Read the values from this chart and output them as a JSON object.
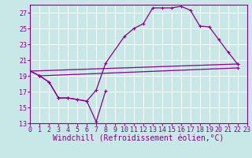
{
  "bg_color": "#c8e8e8",
  "line_color": "#880088",
  "grid_color": "#aacccc",
  "xlim": [
    0,
    23
  ],
  "ylim": [
    13,
    28
  ],
  "yticks": [
    13,
    15,
    17,
    19,
    21,
    23,
    25,
    27
  ],
  "xticks": [
    0,
    1,
    2,
    3,
    4,
    5,
    6,
    7,
    8,
    9,
    10,
    11,
    12,
    13,
    14,
    15,
    16,
    17,
    18,
    19,
    20,
    21,
    22,
    23
  ],
  "xlabel": "Windchill (Refroidissement éolien,°C)",
  "font_size_tick": 6,
  "font_size_xlabel": 7,
  "lines": [
    {
      "x": [
        0,
        1,
        2,
        3,
        4,
        5,
        6,
        7,
        8
      ],
      "y": [
        19.6,
        19.0,
        18.2,
        16.2,
        16.2,
        16.0,
        15.8,
        13.2,
        17.1
      ]
    },
    {
      "x": [
        0,
        1,
        2,
        3,
        4,
        5,
        6,
        7,
        8,
        10,
        11,
        12,
        13,
        14,
        15,
        16,
        17,
        18,
        19,
        20,
        21,
        22
      ],
      "y": [
        19.6,
        19.0,
        18.2,
        16.2,
        16.2,
        16.0,
        15.8,
        17.2,
        20.6,
        24.0,
        25.0,
        25.6,
        27.6,
        27.6,
        27.6,
        27.8,
        27.3,
        25.3,
        25.2,
        23.6,
        22.0,
        20.5
      ]
    },
    {
      "x": [
        0,
        22
      ],
      "y": [
        19.6,
        20.5
      ]
    },
    {
      "x": [
        1,
        22
      ],
      "y": [
        19.0,
        20.0
      ]
    }
  ]
}
